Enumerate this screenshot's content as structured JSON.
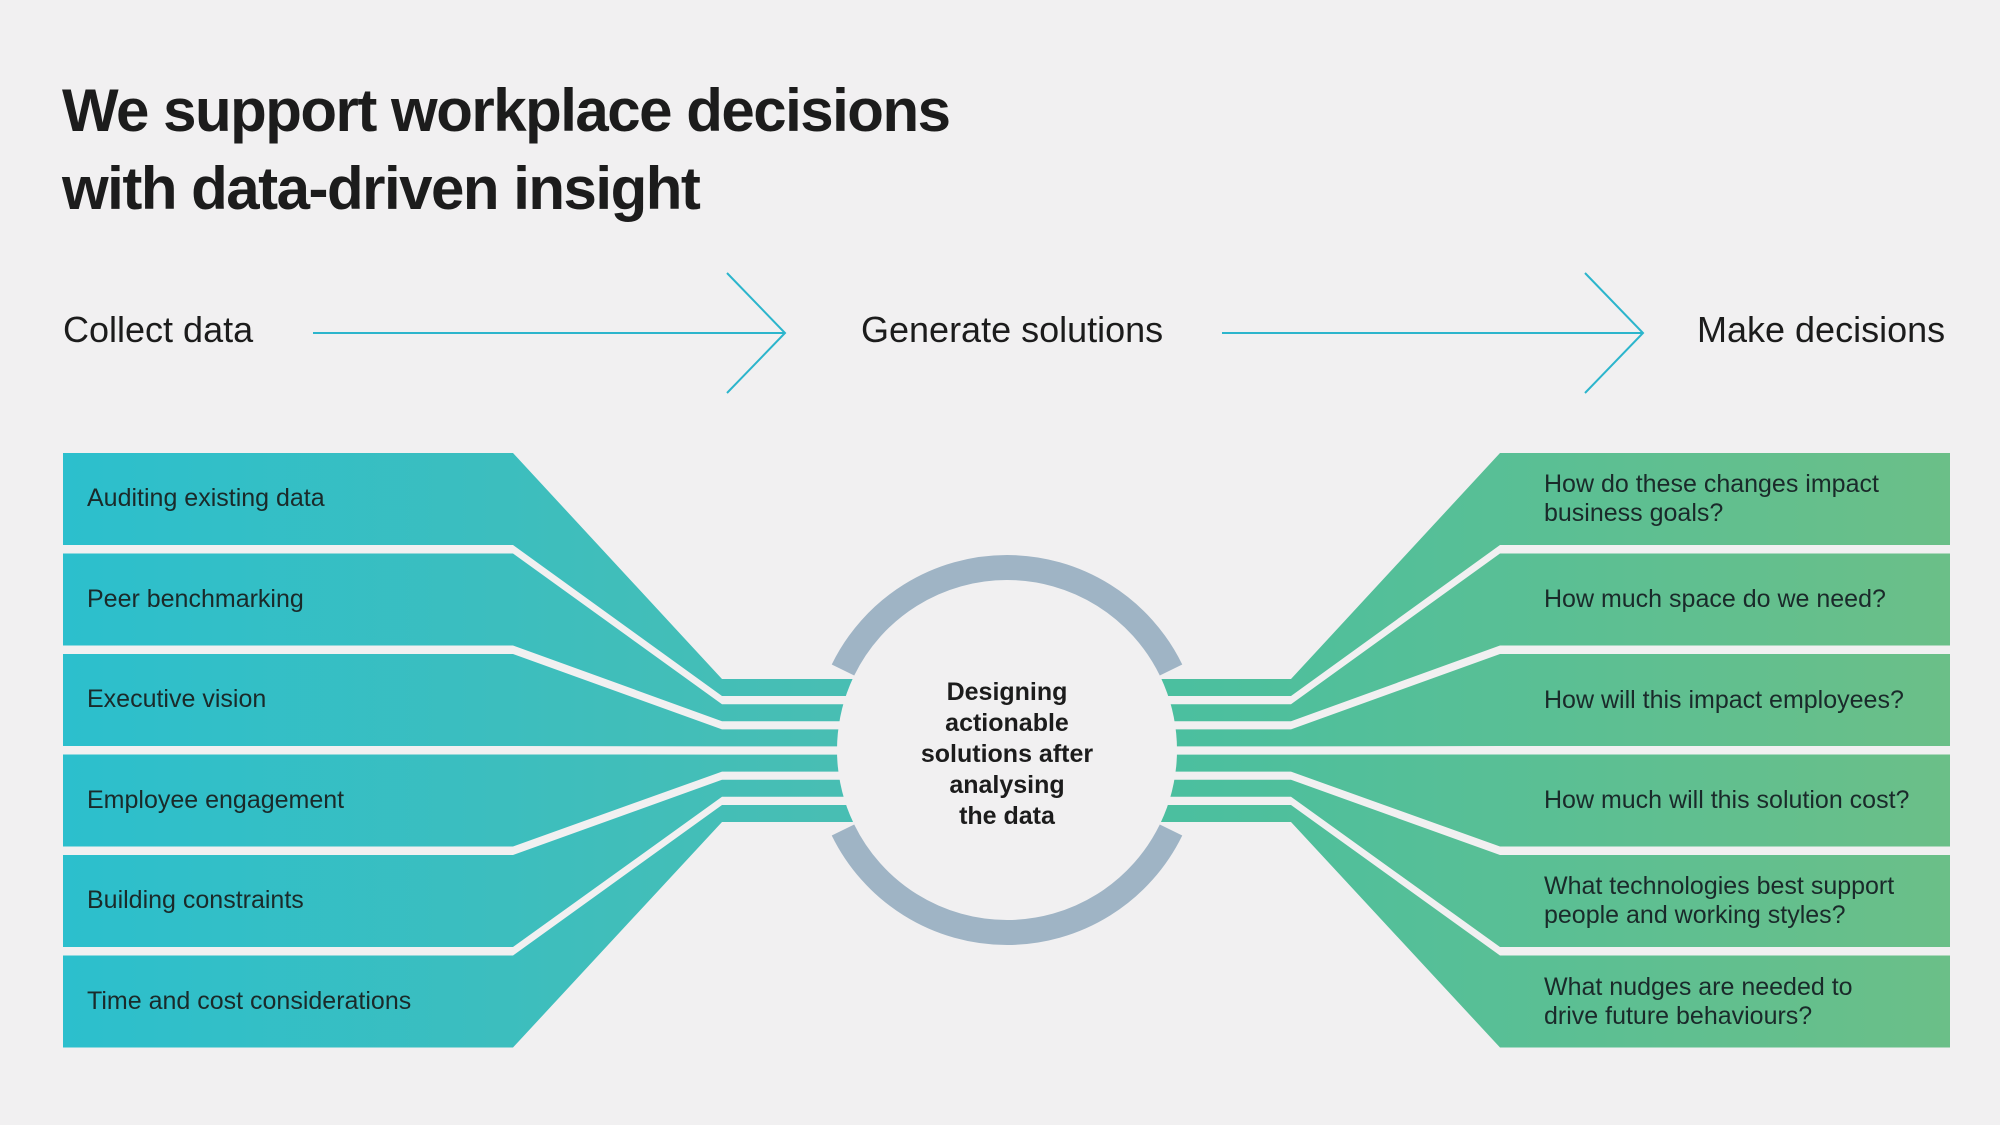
{
  "title": {
    "line1": "We support workplace decisions",
    "line2": "with data-driven insight"
  },
  "steps": [
    "Collect data",
    "Generate solutions",
    "Make decisions"
  ],
  "inputs": [
    "Auditing existing data",
    "Peer benchmarking",
    "Executive vision",
    "Employee engagement",
    "Building constraints",
    "Time and cost considerations"
  ],
  "center_text": [
    "Designing",
    "actionable",
    "solutions after",
    "analysing",
    "the data"
  ],
  "questions": [
    [
      "How do these changes impact",
      "business goals?"
    ],
    [
      "How much space do we need?"
    ],
    [
      "How will this impact employees?"
    ],
    [
      "How much will this solution cost?"
    ],
    [
      "What technologies best support",
      "people and working styles?"
    ],
    [
      "What nudges are needed to",
      "drive future behaviours?"
    ]
  ],
  "colors": {
    "background": "#f1f0f1",
    "left_start": "#2cbfcd",
    "left_end": "#48beb3",
    "right_start": "#4bbf9f",
    "right_end": "#6bbf88",
    "ring": "#9fb4c5",
    "arrow": "#2cb5cc"
  }
}
